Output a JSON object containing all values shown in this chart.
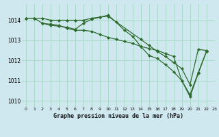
{
  "bg_color": "#cfe8f0",
  "grid_color": "#a8d8c8",
  "line_color": "#2d6a2d",
  "marker_color": "#2d6a2d",
  "title": "Graphe pression niveau de la mer (hPa)",
  "xlim": [
    -0.5,
    23
  ],
  "ylim": [
    1009.7,
    1014.8
  ],
  "yticks": [
    1010,
    1011,
    1012,
    1013,
    1014
  ],
  "xticks": [
    0,
    1,
    2,
    3,
    4,
    5,
    6,
    7,
    8,
    9,
    10,
    11,
    12,
    13,
    14,
    15,
    16,
    17,
    18,
    19,
    20,
    21,
    22,
    23
  ],
  "line1_x": [
    0,
    1,
    2,
    3,
    4,
    5,
    6,
    7,
    8,
    9,
    10,
    14,
    15,
    16,
    17,
    18,
    19,
    20,
    21,
    22
  ],
  "line1_y": [
    1014.1,
    1014.1,
    1014.1,
    1014.0,
    1014.0,
    1014.0,
    1014.0,
    1014.0,
    1014.1,
    1014.15,
    1014.2,
    1013.05,
    1012.75,
    1012.45,
    1012.2,
    1011.9,
    1011.6,
    1010.8,
    1012.55,
    1012.5
  ],
  "line2_x": [
    0,
    1,
    2,
    3,
    4,
    5,
    6,
    7,
    8,
    9,
    10,
    11,
    12,
    13,
    14,
    15,
    16,
    17,
    18,
    19,
    20,
    21,
    22
  ],
  "line2_y": [
    1014.1,
    1014.1,
    1013.85,
    1013.8,
    1013.75,
    1013.6,
    1013.5,
    1013.5,
    1013.45,
    1013.3,
    1013.15,
    1013.05,
    1012.95,
    1012.85,
    1012.7,
    1012.6,
    1012.5,
    1012.35,
    1012.2,
    1011.0,
    1010.2,
    1011.35,
    1012.45
  ],
  "line3_x": [
    2,
    3,
    4,
    5,
    6,
    7,
    8,
    9,
    10,
    11,
    12,
    13,
    14,
    15,
    16,
    17,
    18,
    19,
    20,
    21,
    22
  ],
  "line3_y": [
    1013.85,
    1013.75,
    1013.7,
    1013.65,
    1013.55,
    1013.85,
    1014.05,
    1014.15,
    1014.25,
    1013.9,
    1013.5,
    1013.2,
    1012.7,
    1012.25,
    1012.1,
    1011.8,
    1011.45,
    1011.0,
    1010.3,
    1011.4,
    1012.45
  ]
}
